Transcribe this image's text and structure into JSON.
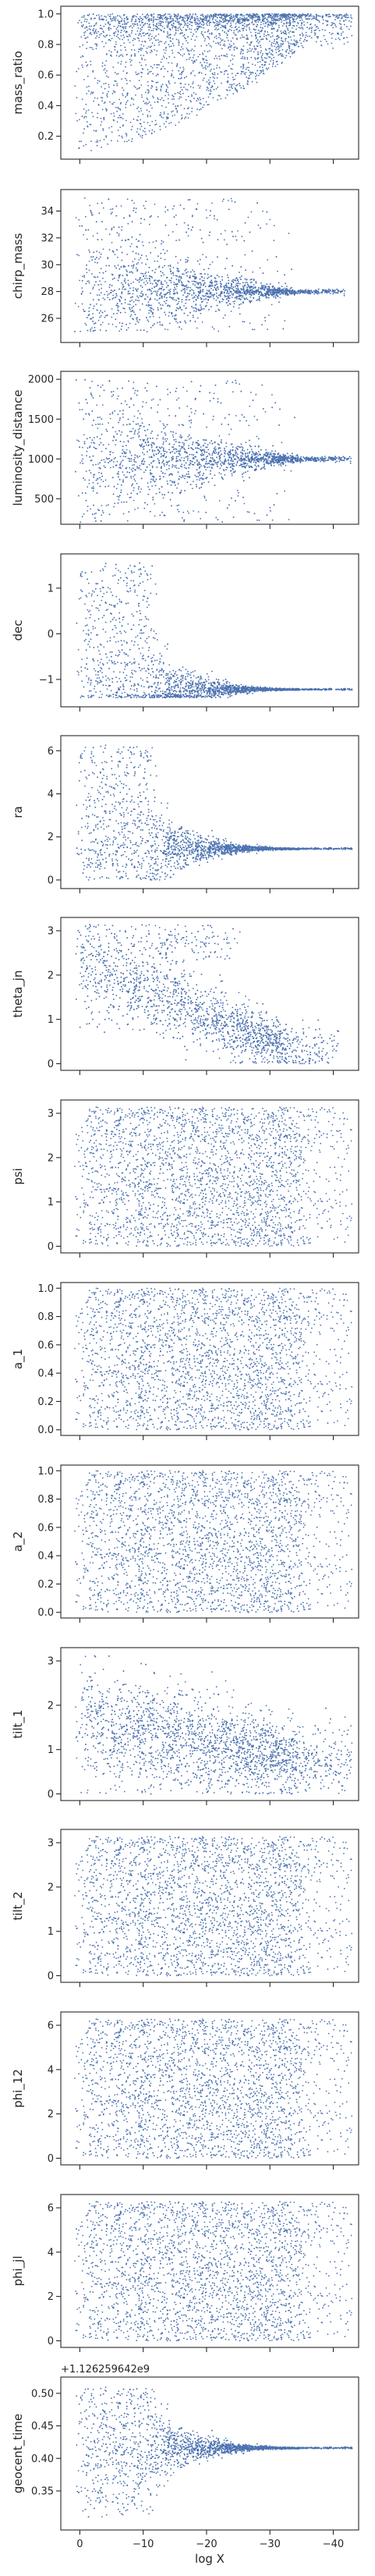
{
  "figure": {
    "type": "scatter",
    "xlabel": "log X",
    "xlim": [
      3,
      -44
    ],
    "xticks": [
      0,
      -10,
      -20,
      -30,
      -40
    ],
    "xtick_labels": [
      "0",
      "−10",
      "−20",
      "−30",
      "−40"
    ],
    "point_color": "#4c72b0",
    "shared_x": true,
    "grid": false,
    "legend": "none"
  },
  "chart_data": [
    {
      "type": "scatter",
      "ylabel": "mass_ratio",
      "ylim": [
        0.05,
        1.05
      ],
      "yticks": [
        0.2,
        0.4,
        0.6,
        0.8,
        1.0
      ],
      "ytick_labels": [
        "0.2",
        "0.4",
        "0.6",
        "0.8",
        "1.0"
      ],
      "x_range": [
        0,
        -37
      ],
      "y_range": [
        0.1,
        1.0
      ],
      "shape": "wedge-up",
      "converge_to": 0.93
    },
    {
      "type": "scatter",
      "ylabel": "chirp_mass",
      "ylim": [
        24.2,
        35.6
      ],
      "yticks": [
        26,
        28,
        30,
        32,
        34
      ],
      "ytick_labels": [
        "26",
        "28",
        "30",
        "32",
        "34"
      ],
      "x_range": [
        0,
        -36
      ],
      "y_range": [
        25,
        35
      ],
      "shape": "funnel",
      "converge_to": 28.0
    },
    {
      "type": "scatter",
      "ylabel": "luminosity_distance",
      "ylim": [
        180,
        2100
      ],
      "yticks": [
        500,
        1000,
        1500,
        2000
      ],
      "ytick_labels": [
        "500",
        "1000",
        "1500",
        "2000"
      ],
      "x_range": [
        0,
        -37
      ],
      "y_range": [
        200,
        2000
      ],
      "shape": "funnel",
      "converge_to": 1000
    },
    {
      "type": "scatter",
      "ylabel": "dec",
      "ylim": [
        -1.6,
        1.75
      ],
      "yticks": [
        -1,
        0,
        1
      ],
      "ytick_labels": [
        "−1",
        "0",
        "1"
      ],
      "x_range": [
        0,
        -37
      ],
      "y_range": [
        -1.4,
        1.55
      ],
      "shape": "collapse",
      "converge_to": -1.22
    },
    {
      "type": "scatter",
      "ylabel": "ra",
      "ylim": [
        -0.4,
        6.7
      ],
      "yticks": [
        0,
        2,
        4,
        6
      ],
      "ytick_labels": [
        "0",
        "2",
        "4",
        "6"
      ],
      "x_range": [
        0,
        -37
      ],
      "y_range": [
        0,
        6.28
      ],
      "shape": "collapse",
      "converge_to": 1.45
    },
    {
      "type": "scatter",
      "ylabel": "theta_jn",
      "ylim": [
        -0.15,
        3.3
      ],
      "yticks": [
        0,
        1,
        2,
        3
      ],
      "ytick_labels": [
        "0",
        "1",
        "2",
        "3"
      ],
      "x_range": [
        0,
        -35
      ],
      "y_range": [
        0,
        3.14
      ],
      "shape": "diagonal",
      "converge_to": 0.25
    },
    {
      "type": "scatter",
      "ylabel": "psi",
      "ylim": [
        -0.15,
        3.3
      ],
      "yticks": [
        0,
        1,
        2,
        3
      ],
      "ytick_labels": [
        "0",
        "1",
        "2",
        "3"
      ],
      "x_range": [
        0,
        -37
      ],
      "y_range": [
        0,
        3.14
      ],
      "shape": "uniform"
    },
    {
      "type": "scatter",
      "ylabel": "a_1",
      "ylim": [
        -0.04,
        1.04
      ],
      "yticks": [
        0.0,
        0.2,
        0.4,
        0.6,
        0.8,
        1.0
      ],
      "ytick_labels": [
        "0.0",
        "0.2",
        "0.4",
        "0.6",
        "0.8",
        "1.0"
      ],
      "x_range": [
        0,
        -37
      ],
      "y_range": [
        0,
        1
      ],
      "shape": "uniform"
    },
    {
      "type": "scatter",
      "ylabel": "a_2",
      "ylim": [
        -0.04,
        1.04
      ],
      "yticks": [
        0.0,
        0.2,
        0.4,
        0.6,
        0.8,
        1.0
      ],
      "ytick_labels": [
        "0.0",
        "0.2",
        "0.4",
        "0.6",
        "0.8",
        "1.0"
      ],
      "x_range": [
        0,
        -37
      ],
      "y_range": [
        0,
        1
      ],
      "shape": "uniform"
    },
    {
      "type": "scatter",
      "ylabel": "tilt_1",
      "ylim": [
        -0.15,
        3.3
      ],
      "yticks": [
        0,
        1,
        2,
        3
      ],
      "ytick_labels": [
        "0",
        "1",
        "2",
        "3"
      ],
      "x_range": [
        0,
        -37
      ],
      "y_range": [
        0,
        3.14
      ],
      "shape": "decay",
      "converge_to": 0.7
    },
    {
      "type": "scatter",
      "ylabel": "tilt_2",
      "ylim": [
        -0.15,
        3.3
      ],
      "yticks": [
        0,
        1,
        2,
        3
      ],
      "ytick_labels": [
        "0",
        "1",
        "2",
        "3"
      ],
      "x_range": [
        0,
        -37
      ],
      "y_range": [
        0,
        3.14
      ],
      "shape": "uniform"
    },
    {
      "type": "scatter",
      "ylabel": "phi_12",
      "ylim": [
        -0.3,
        6.6
      ],
      "yticks": [
        0,
        2,
        4,
        6
      ],
      "ytick_labels": [
        "0",
        "2",
        "4",
        "6"
      ],
      "x_range": [
        0,
        -37
      ],
      "y_range": [
        0,
        6.28
      ],
      "shape": "uniform"
    },
    {
      "type": "scatter",
      "ylabel": "phi_jl",
      "ylim": [
        -0.3,
        6.6
      ],
      "yticks": [
        0,
        2,
        4,
        6
      ],
      "ytick_labels": [
        "0",
        "2",
        "4",
        "6"
      ],
      "x_range": [
        0,
        -37
      ],
      "y_range": [
        0,
        6.28
      ],
      "shape": "uniform"
    },
    {
      "type": "scatter",
      "ylabel": "geocent_time",
      "ylim": [
        0.29,
        0.525
      ],
      "yticks": [
        0.35,
        0.4,
        0.45,
        0.5
      ],
      "ytick_labels": [
        "0.35",
        "0.40",
        "0.45",
        "0.50"
      ],
      "offset_text": "+1.126259642e9",
      "x_range": [
        0,
        -37
      ],
      "y_range": [
        0.31,
        0.51
      ],
      "shape": "collapse",
      "converge_to": 0.416
    }
  ]
}
